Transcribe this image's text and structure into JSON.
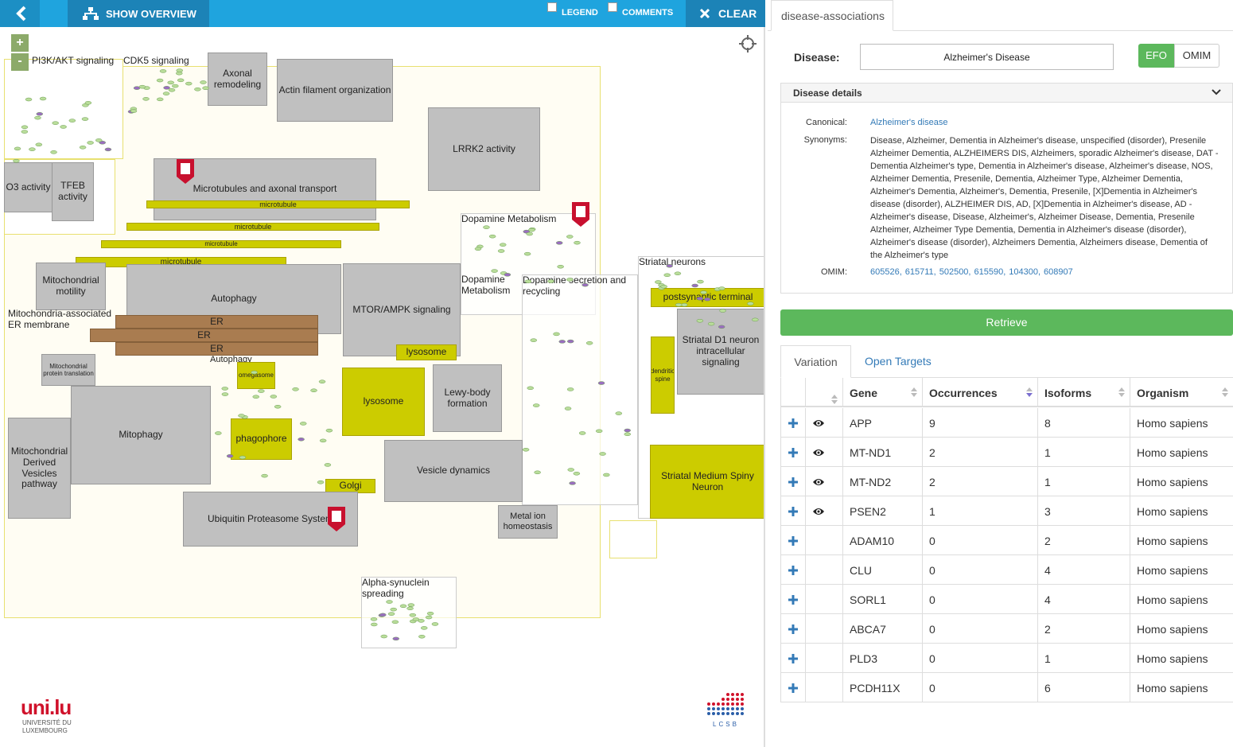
{
  "toolbar": {
    "overview": "SHOW OVERVIEW",
    "legend": "LEGEND",
    "comments": "COMMENTS",
    "clear": "CLEAR"
  },
  "map": {
    "zoom": [
      "+",
      "-"
    ],
    "boxes": [
      "PI3K/AKT signaling",
      "CDK5 signaling",
      "Axonal remodeling",
      "Actin filament organization",
      "LRRK2 activity",
      "Microtubules and axonal transport",
      "microtubule",
      "microtubule",
      "microtubule",
      "microtubule",
      "TFEB activity",
      "O3 activity",
      "Mitochondrial motility",
      "Autophagy",
      "MTOR/AMPK signaling",
      "Dopamine Metabolism",
      "Dopamine secretion and recycling",
      "Striatal neurons",
      "postsynaptic terminal",
      "Striatal D1 neuron intracellular signaling",
      "dendritic spine",
      "Mitochondria-associated ER membrane",
      "ER",
      "ER",
      "ER",
      "lysosome",
      "lysosome",
      "Lewy-body formation",
      "Mitophagy",
      "Mitochondrial Derived Vesicles pathway",
      "Mitochondrial protein translation",
      "Autophagy",
      "omegasome",
      "phagophore",
      "Golgi",
      "Vesicle dynamics",
      "Ubiquitin Proteasome System",
      "Metal ion homeostasis",
      "Striatal Medium Spiny Neuron",
      "Alpha-synuclein spreading",
      "Dopamine Metabolism"
    ]
  },
  "logos": {
    "unilu": "uni.lu",
    "university": [
      "UNIVERSITÉ DU",
      "LUXEMBOURG"
    ],
    "lcsb": "LCSB"
  },
  "panel": {
    "tab": "disease-associations",
    "disease_label": "Disease:",
    "disease_value": "Alzheimer's Disease",
    "sources": [
      "EFO",
      "OMIM"
    ],
    "details": {
      "title": "Disease details",
      "canonical_label": "Canonical:",
      "canonical": "Alzheimer's disease",
      "synonyms_label": "Synonyms:",
      "synonyms": "Disease, Alzheimer, Dementia in Alzheimer's disease, unspecified (disorder), Presenile Alzheimer Dementia, ALZHEIMERS DIS, Alzheimers, sporadic Alzheimer's disease, DAT - Dementia Alzheimer's type, Dementia in Alzheimer's disease, Alzheimer's disease, NOS, Alzheimer Dementia, Presenile, Dementia, Alzheimer Type, Alzheimer Dementia, Alzheimer's Dementia, Alzheimer's, Dementia, Presenile, [X]Dementia in Alzheimer's disease (disorder), ALZHEIMER DIS, AD, [X]Dementia in Alzheimer's disease, AD - Alzheimer's disease, Disease, Alzheimer's, Alzheimer Disease, Dementia, Presenile Alzheimer, Alzheimer Type Dementia, Dementia in Alzheimer's disease (disorder), Alzheimer's disease (disorder), Alzheimers Dementia, Alzheimers disease, Dementia of the Alzheimer's type",
      "omim_label": "OMIM:",
      "omim": [
        "605526,",
        "615711,",
        "502500,",
        "615590,",
        "104300,",
        "608907"
      ]
    },
    "retrieve": "Retrieve",
    "tabs": [
      "Variation",
      "Open Targets"
    ],
    "table": {
      "columns": [
        "Gene",
        "Occurrences",
        "Isoforms",
        "Organism"
      ],
      "rows": [
        [
          "APP",
          9,
          8,
          "Homo sapiens"
        ],
        [
          "MT-ND1",
          2,
          1,
          "Homo sapiens"
        ],
        [
          "MT-ND2",
          2,
          1,
          "Homo sapiens"
        ],
        [
          "PSEN2",
          1,
          3,
          "Homo sapiens"
        ],
        [
          "ADAM10",
          0,
          2,
          "Homo sapiens"
        ],
        [
          "CLU",
          0,
          4,
          "Homo sapiens"
        ],
        [
          "SORL1",
          0,
          4,
          "Homo sapiens"
        ],
        [
          "ABCA7",
          0,
          2,
          "Homo sapiens"
        ],
        [
          "PLD3",
          0,
          1,
          "Homo sapiens"
        ],
        [
          "PCDH11X",
          0,
          6,
          "Homo sapiens"
        ]
      ]
    }
  }
}
